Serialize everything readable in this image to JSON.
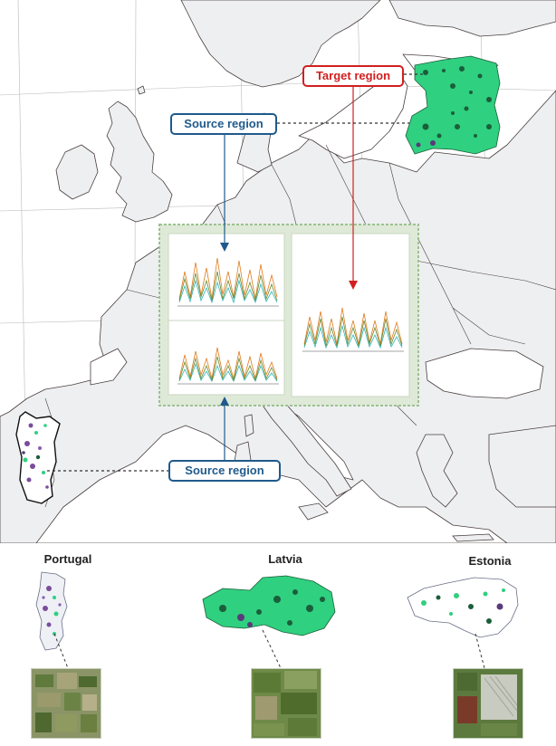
{
  "labels": {
    "target_region": "Target region",
    "source_region_top": "Source region",
    "source_region_bottom": "Source region"
  },
  "countries": [
    {
      "name": "Portugal"
    },
    {
      "name": "Latvia"
    },
    {
      "name": "Estonia"
    }
  ],
  "colors": {
    "source": "#1f5a8c",
    "target": "#d21f1f",
    "sea": "#ffffff",
    "land": "#eeeff1",
    "coast": "#4a3f3f",
    "panel_border": "#9bc28f",
    "panel_fill": "#dfe9d8",
    "field_green": "#2fd07f",
    "field_dark": "#1b5e3a",
    "field_purple": "#7a4c9a"
  },
  "icons": [
    "arrow-down-blue",
    "arrow-up-blue",
    "arrow-down-red"
  ]
}
